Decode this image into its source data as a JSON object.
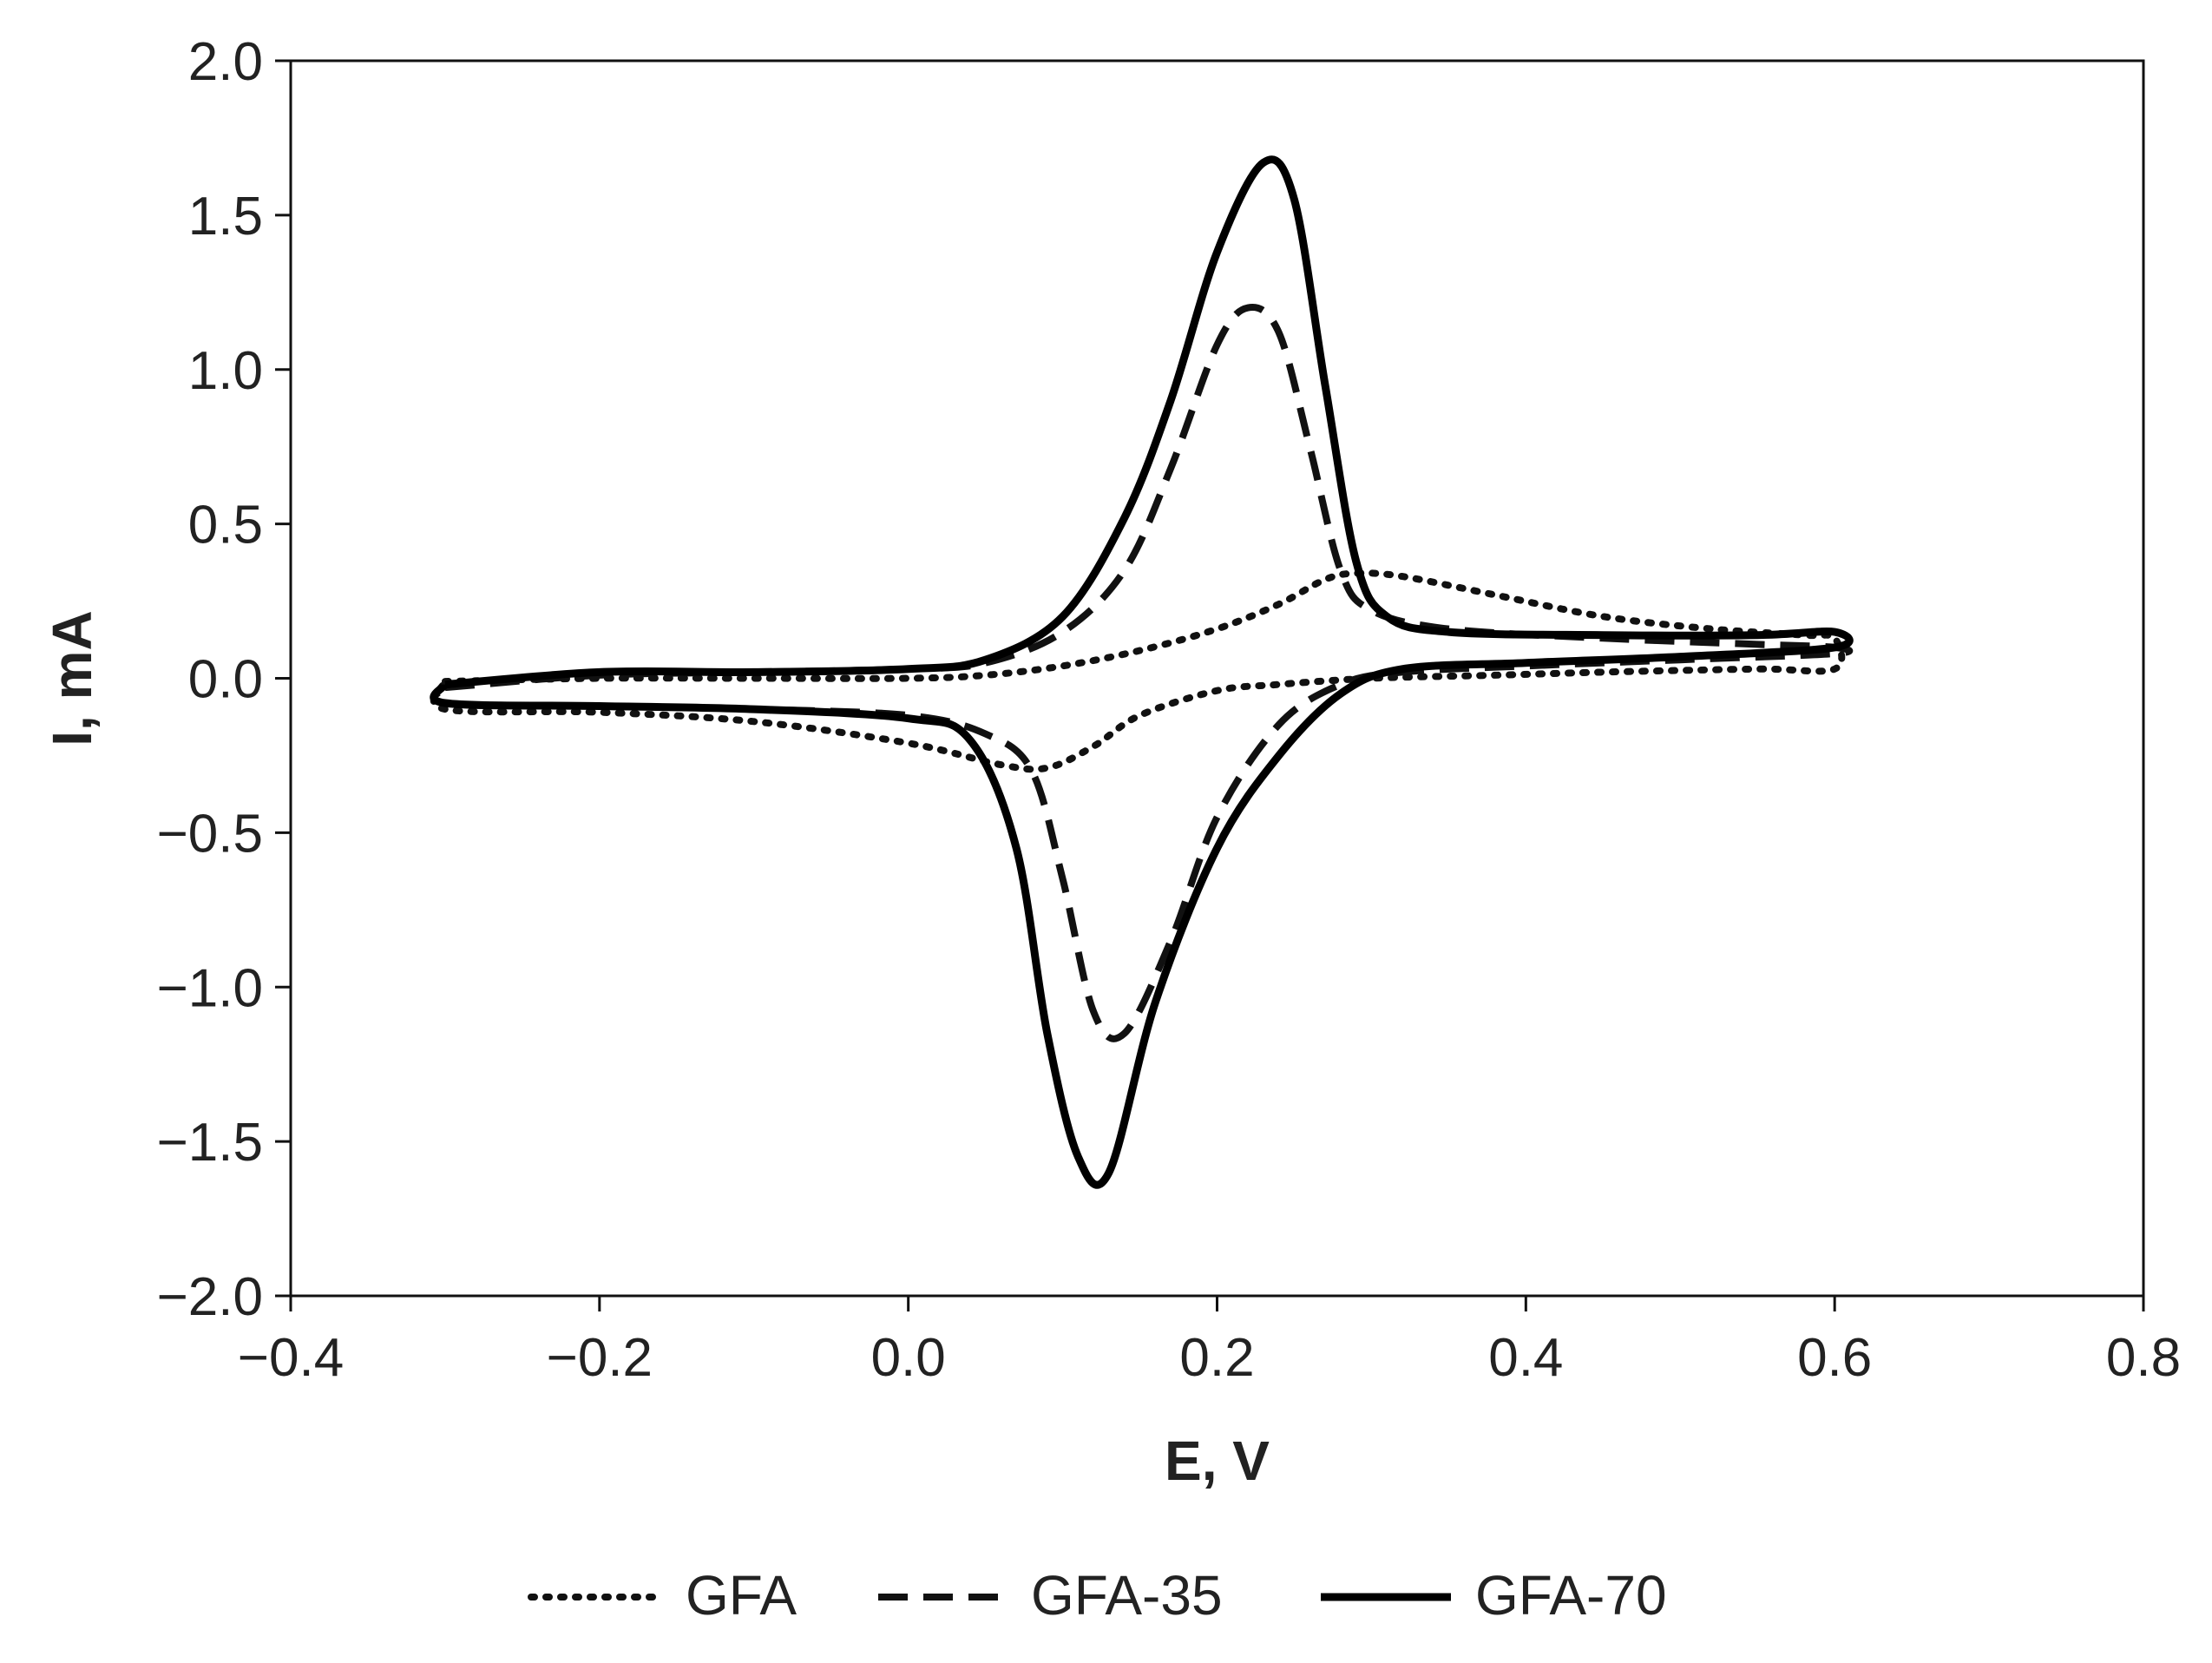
{
  "chart_data": {
    "type": "line",
    "title": "",
    "xlabel": "E, V",
    "ylabel": "I, mA",
    "xlim": [
      -0.4,
      0.8
    ],
    "ylim": [
      -2.0,
      2.0
    ],
    "xticks": [
      "−0.4",
      "−0.2",
      "0.0",
      "0.2",
      "0.4",
      "0.6",
      "0.8"
    ],
    "xtick_values": [
      -0.4,
      -0.2,
      0.0,
      0.2,
      0.4,
      0.6,
      0.8
    ],
    "yticks": [
      "2.0",
      "1.5",
      "1.0",
      "0.5",
      "0.0",
      "−0.5",
      "−1.0",
      "−1.5",
      "−2.0"
    ],
    "ytick_values": [
      2.0,
      1.5,
      1.0,
      0.5,
      0.0,
      -0.5,
      -1.0,
      -1.5,
      -2.0
    ],
    "grid": false,
    "legend_position": "bottom",
    "series": [
      {
        "name": "GFA",
        "style": "dotted",
        "color": "#111111",
        "points": [
          [
            -0.3,
            -0.01
          ],
          [
            -0.2,
            0.0
          ],
          [
            -0.1,
            0.0
          ],
          [
            0.0,
            0.0
          ],
          [
            0.05,
            0.01
          ],
          [
            0.1,
            0.04
          ],
          [
            0.15,
            0.09
          ],
          [
            0.2,
            0.16
          ],
          [
            0.24,
            0.24
          ],
          [
            0.27,
            0.32
          ],
          [
            0.29,
            0.34
          ],
          [
            0.32,
            0.33
          ],
          [
            0.38,
            0.27
          ],
          [
            0.45,
            0.2
          ],
          [
            0.52,
            0.16
          ],
          [
            0.58,
            0.14
          ],
          [
            0.6,
            0.13
          ],
          [
            0.6,
            0.03
          ],
          [
            0.55,
            0.03
          ],
          [
            0.45,
            0.02
          ],
          [
            0.38,
            0.01
          ],
          [
            0.3,
            0.0
          ],
          [
            0.24,
            -0.02
          ],
          [
            0.2,
            -0.04
          ],
          [
            0.15,
            -0.12
          ],
          [
            0.12,
            -0.22
          ],
          [
            0.09,
            -0.29
          ],
          [
            0.06,
            -0.28
          ],
          [
            0.0,
            -0.21
          ],
          [
            -0.1,
            -0.14
          ],
          [
            -0.2,
            -0.11
          ],
          [
            -0.3,
            -0.1
          ],
          [
            -0.3,
            -0.01
          ]
        ]
      },
      {
        "name": "GFA-35",
        "style": "dashed",
        "color": "#111111",
        "points": [
          [
            -0.3,
            -0.03
          ],
          [
            -0.2,
            0.01
          ],
          [
            -0.1,
            0.02
          ],
          [
            0.0,
            0.03
          ],
          [
            0.05,
            0.05
          ],
          [
            0.1,
            0.15
          ],
          [
            0.14,
            0.35
          ],
          [
            0.17,
            0.68
          ],
          [
            0.2,
            1.08
          ],
          [
            0.22,
            1.2
          ],
          [
            0.24,
            1.12
          ],
          [
            0.26,
            0.75
          ],
          [
            0.28,
            0.35
          ],
          [
            0.3,
            0.22
          ],
          [
            0.35,
            0.16
          ],
          [
            0.45,
            0.13
          ],
          [
            0.55,
            0.11
          ],
          [
            0.6,
            0.1
          ],
          [
            0.6,
            0.08
          ],
          [
            0.5,
            0.06
          ],
          [
            0.4,
            0.04
          ],
          [
            0.32,
            0.02
          ],
          [
            0.28,
            -0.02
          ],
          [
            0.24,
            -0.15
          ],
          [
            0.2,
            -0.45
          ],
          [
            0.17,
            -0.85
          ],
          [
            0.14,
            -1.15
          ],
          [
            0.12,
            -1.08
          ],
          [
            0.1,
            -0.65
          ],
          [
            0.08,
            -0.3
          ],
          [
            0.05,
            -0.18
          ],
          [
            0.0,
            -0.12
          ],
          [
            -0.1,
            -0.1
          ],
          [
            -0.2,
            -0.09
          ],
          [
            -0.3,
            -0.08
          ],
          [
            -0.3,
            -0.03
          ]
        ]
      },
      {
        "name": "GFA-70",
        "style": "solid",
        "color": "#000000",
        "points": [
          [
            -0.3,
            -0.02
          ],
          [
            -0.2,
            0.02
          ],
          [
            -0.1,
            0.02
          ],
          [
            0.0,
            0.03
          ],
          [
            0.05,
            0.06
          ],
          [
            0.1,
            0.2
          ],
          [
            0.14,
            0.52
          ],
          [
            0.17,
            0.9
          ],
          [
            0.2,
            1.38
          ],
          [
            0.23,
            1.67
          ],
          [
            0.25,
            1.55
          ],
          [
            0.27,
            0.95
          ],
          [
            0.29,
            0.38
          ],
          [
            0.31,
            0.2
          ],
          [
            0.35,
            0.15
          ],
          [
            0.45,
            0.14
          ],
          [
            0.55,
            0.14
          ],
          [
            0.6,
            0.15
          ],
          [
            0.6,
            0.1
          ],
          [
            0.5,
            0.07
          ],
          [
            0.4,
            0.05
          ],
          [
            0.32,
            0.03
          ],
          [
            0.28,
            -0.05
          ],
          [
            0.24,
            -0.25
          ],
          [
            0.2,
            -0.55
          ],
          [
            0.16,
            -1.05
          ],
          [
            0.13,
            -1.6
          ],
          [
            0.11,
            -1.55
          ],
          [
            0.09,
            -1.15
          ],
          [
            0.07,
            -0.55
          ],
          [
            0.04,
            -0.2
          ],
          [
            0.0,
            -0.13
          ],
          [
            -0.1,
            -0.1
          ],
          [
            -0.2,
            -0.09
          ],
          [
            -0.3,
            -0.08
          ],
          [
            -0.3,
            -0.02
          ]
        ]
      }
    ]
  }
}
